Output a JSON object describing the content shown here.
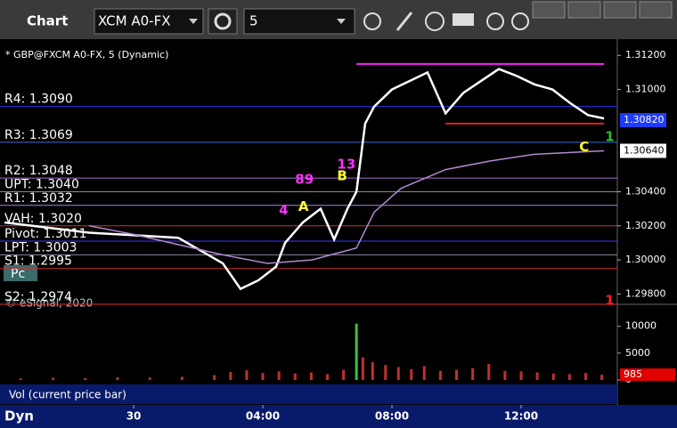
{
  "toolbar": {
    "title": "Chart",
    "symbol": "XCM A0-FX",
    "interval": "5",
    "status": "Dyn",
    "badge": "Pc"
  },
  "chart_data": [
    {
      "type": "line",
      "title": "* GBP@FXCM A0-FX, 5 (Dynamic)",
      "copyright": "© eSignal, 2020",
      "xlim": [
        -4.14,
        14.98
      ],
      "ylim": [
        1.2975,
        1.3129
      ],
      "xticks": [
        {
          "value": 0,
          "label": "30"
        },
        {
          "value": 4,
          "label": "04:00"
        },
        {
          "value": 8,
          "label": "08:00"
        },
        {
          "value": 12,
          "label": "12:00"
        }
      ],
      "yticks": [
        {
          "value": 1.312,
          "label": "1.31200"
        },
        {
          "value": 1.31,
          "label": "1.31000"
        },
        {
          "value": 1.304,
          "label": "1.30400"
        },
        {
          "value": 1.302,
          "label": "1.30200"
        },
        {
          "value": 1.3,
          "label": "1.30000"
        },
        {
          "value": 1.298,
          "label": "1.29800"
        }
      ],
      "price_markers": [
        {
          "value": 1.3082,
          "label": "1.30820",
          "color": "#1e3cff"
        },
        {
          "value": 1.3064,
          "label": "1.30640",
          "color": "#ffffff"
        }
      ],
      "series": [
        {
          "name": "Price",
          "color": "#ffffff",
          "x": [
            -4.0,
            -1.38,
            1.38,
            2.21,
            2.76,
            3.31,
            3.86,
            4.41,
            4.69,
            5.24,
            5.79,
            6.21,
            6.62,
            6.9,
            7.17,
            7.45,
            8.0,
            8.55,
            9.1,
            9.66,
            10.21,
            10.76,
            11.31,
            11.86,
            12.41,
            12.97,
            13.52,
            14.07,
            14.57
          ],
          "values": [
            1.3022,
            1.3016,
            1.3013,
            1.3004,
            1.2998,
            1.2983,
            1.2988,
            1.2996,
            1.301,
            1.3022,
            1.303,
            1.3012,
            1.303,
            1.304,
            1.308,
            1.309,
            1.31,
            1.3105,
            1.311,
            1.3086,
            1.3098,
            1.3105,
            1.3112,
            1.3108,
            1.3103,
            1.31,
            1.3092,
            1.3085,
            1.3083
          ]
        },
        {
          "name": "MA",
          "color": "#b08ad0",
          "x": [
            -1.38,
            0,
            2.76,
            4.14,
            5.52,
            6.9,
            7.45,
            8.28,
            9.66,
            11.03,
            12.41,
            14.57
          ],
          "values": [
            1.302,
            1.3015,
            1.3003,
            1.2998,
            1.3,
            1.3007,
            1.3028,
            1.3042,
            1.3053,
            1.3058,
            1.3062,
            1.3064
          ]
        }
      ],
      "levels": [
        {
          "label": "R4: 1.3090",
          "value": 1.309,
          "color": "#3232ff"
        },
        {
          "label": "R3: 1.3069",
          "value": 1.3069,
          "color": "#3a6ad8"
        },
        {
          "label": "R2: 1.3048",
          "value": 1.3048,
          "color": "#a070d0"
        },
        {
          "label": "UPT: 1.3040",
          "value": 1.304,
          "color": "#8a8aa0"
        },
        {
          "label": "R1: 1.3032",
          "value": 1.3032,
          "color": "#b080e0"
        },
        {
          "label": "VAH: 1.3020",
          "value": 1.302,
          "color": "#d03030"
        },
        {
          "label": "Pivot: 1.3011",
          "value": 1.3011,
          "color": "#3a3aff"
        },
        {
          "label": "LPT: 1.3003",
          "value": 1.3003,
          "color": "#8a8aa0"
        },
        {
          "label": "S1: 1.2995",
          "value": 1.2995,
          "color": "#d03030"
        },
        {
          "label": "S2: 1.2974",
          "value": 1.2974,
          "color": "#e02020"
        }
      ],
      "segments": [
        {
          "value": 1.3115,
          "x": [
            6.9,
            14.57
          ],
          "color": "#ff20ff"
        },
        {
          "value": 1.308,
          "x": [
            9.66,
            14.57
          ],
          "color": "#e02020"
        }
      ],
      "annotations": [
        {
          "text": "A",
          "x": 5.1,
          "y": 1.3031,
          "color": "#ffff30"
        },
        {
          "text": "B",
          "x": 6.3,
          "y": 1.3049,
          "color": "#ffff30"
        },
        {
          "text": "C",
          "x": 13.8,
          "y": 1.3066,
          "color": "#ffff30"
        },
        {
          "text": "89",
          "x": 5.0,
          "y": 1.3047,
          "color": "#ff30ff"
        },
        {
          "text": "13",
          "x": 6.3,
          "y": 1.3056,
          "color": "#ff30ff"
        },
        {
          "text": "4",
          "x": 4.5,
          "y": 1.3029,
          "color": "#ff30ff"
        },
        {
          "text": "1",
          "x": 14.6,
          "y": 1.3072,
          "color": "#30c030"
        },
        {
          "text": "1",
          "x": 14.6,
          "y": 1.2976,
          "color": "#ff2020"
        }
      ]
    },
    {
      "type": "bar",
      "title": "Vol (current price bar)",
      "color": "#c03030",
      "xlim": [
        -4.14,
        14.98
      ],
      "ylim": [
        0,
        13600
      ],
      "yticks": [
        10000,
        5000,
        0
      ],
      "last_volume": 985,
      "last_color": "#e00000",
      "x": [
        -3.5,
        -2.5,
        -1.5,
        -0.5,
        0.5,
        1.5,
        2.5,
        3.0,
        3.5,
        4.0,
        4.5,
        5.0,
        5.5,
        6.0,
        6.5,
        6.9,
        7.1,
        7.4,
        7.8,
        8.2,
        8.6,
        9.0,
        9.5,
        10.0,
        10.5,
        11.0,
        11.5,
        12.0,
        12.5,
        13.0,
        13.5,
        14.0,
        14.5
      ],
      "values": [
        300,
        400,
        350,
        500,
        450,
        600,
        900,
        1500,
        1800,
        1300,
        1600,
        1200,
        1400,
        1100,
        1900,
        10500,
        4200,
        3300,
        2800,
        2400,
        2000,
        2600,
        1700,
        1900,
        2200,
        3000,
        1700,
        1600,
        1400,
        1200,
        1100,
        1300,
        985
      ]
    }
  ]
}
